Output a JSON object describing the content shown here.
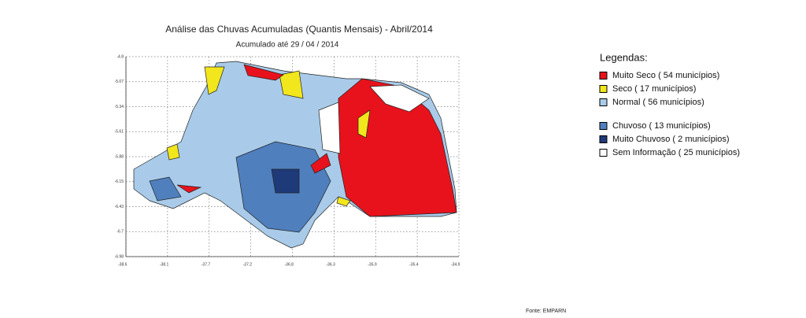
{
  "header": {
    "title": "Análise das Chuvas Acumuladas (Quantis Mensais) - Abril/2014",
    "subtitle": "Acumulado até  29 / 04 / 2014"
  },
  "map": {
    "y_labels": [
      "-4.8",
      "-5.07",
      "-5.34",
      "-5.61",
      "-5.88",
      "-6.15",
      "-6.43",
      "-6.7",
      "-6.98"
    ],
    "x_labels": [
      "-38.6",
      "-38.1",
      "-37.7",
      "-37.2",
      "-36.8",
      "-36.3",
      "-35.9",
      "-35.4",
      "-34.9"
    ]
  },
  "legend": {
    "title": "Legendas:",
    "items": [
      {
        "label": "Muito Seco ( 54 municípios)",
        "color": "#e8121c"
      },
      {
        "label": "Seco ( 17 municípios)",
        "color": "#f2e61c"
      },
      {
        "label": "Normal ( 56 municípios)",
        "color": "#a9cbe9"
      },
      {
        "label": "Chuvoso ( 13 municípios)",
        "color": "#4f7fbd"
      },
      {
        "label": "Muito Chuvoso ( 2 municípios)",
        "color": "#1f3a78"
      },
      {
        "label": "Sem Informação ( 25 municípios)",
        "color": "#ffffff"
      }
    ]
  },
  "footer": {
    "source": "Fonte: EMPARN"
  }
}
